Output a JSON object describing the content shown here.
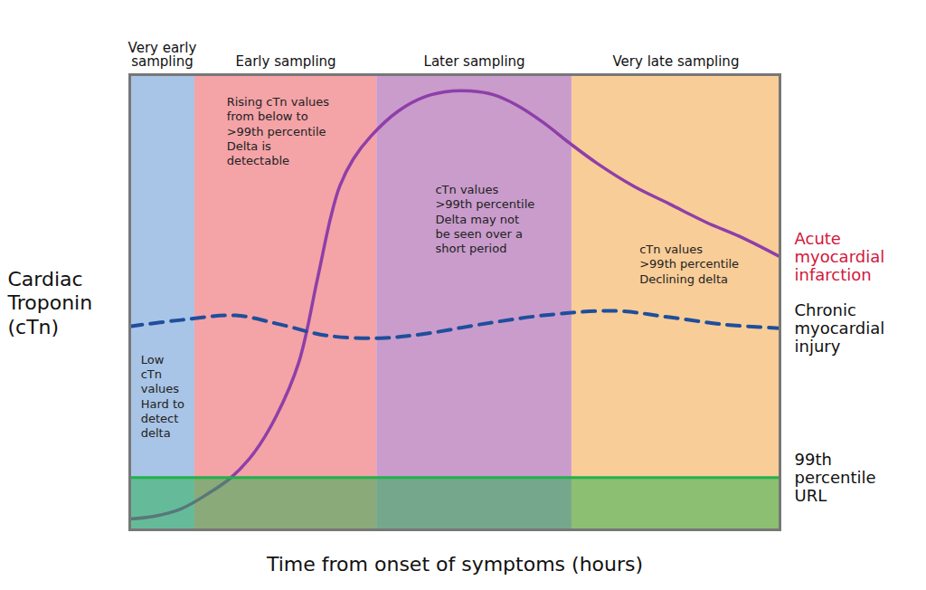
{
  "chart_data": {
    "type": "line",
    "x_label": "Time from onset of symptoms (hours)",
    "y_label": "Cardiac\nTroponin\n(cTn)",
    "xlim": [
      0,
      100
    ],
    "ylim": [
      0,
      100
    ],
    "xticks": [],
    "yticks": [],
    "tick_labels": false,
    "grid": false,
    "zones": [
      {
        "label": "Very early\nsampling",
        "x": [
          0,
          10
        ],
        "color": "#a8c4e6"
      },
      {
        "label": "Early sampling",
        "x": [
          10,
          38
        ],
        "color": "#f4a3a7"
      },
      {
        "label": "Later sampling",
        "x": [
          38,
          68
        ],
        "color": "#c99ccc"
      },
      {
        "label": "Very late sampling",
        "x": [
          68,
          100
        ],
        "color": "#f8cd98"
      }
    ],
    "threshold": {
      "name": "99th\npercentile\nURL",
      "value": 11.5,
      "color": "#22b14c"
    },
    "series": [
      {
        "name": "Acute\nmyocardial\ninfarction",
        "color": "#8e3fa8",
        "line_style": "solid",
        "x": [
          0,
          3.8,
          7.9,
          12.1,
          15.6,
          19.1,
          22.5,
          26.0,
          28.8,
          30.9,
          32.3,
          34.4,
          37.1,
          41.3,
          45.5,
          49.7,
          52.4,
          55.9,
          59.4,
          63.6,
          67.7,
          71.9,
          77.5,
          83.0,
          88.6,
          94.2,
          100
        ],
        "values": [
          2.4,
          3.0,
          4.6,
          8.0,
          11.5,
          16.9,
          24.9,
          36.8,
          54.7,
          68.6,
          75.5,
          81.5,
          86.5,
          92.0,
          95.2,
          96.4,
          96.4,
          95.6,
          93.4,
          89.5,
          84.9,
          80.5,
          75.5,
          71.6,
          67.6,
          64.2,
          60.0
        ]
      },
      {
        "name": "Chronic\nmyocardial\ninjury",
        "color": "#1f4e9c",
        "line_style": "dashed",
        "x": [
          0,
          7.9,
          16.3,
          23.2,
          30.2,
          38.5,
          45.5,
          53.8,
          63.6,
          74.7,
          83.0,
          91.5,
          100
        ],
        "values": [
          44.7,
          46.1,
          47.1,
          45.1,
          42.7,
          42.1,
          43.1,
          45.1,
          47.1,
          48.1,
          46.7,
          45.1,
          44.3
        ]
      }
    ],
    "annotations": [
      {
        "text": "Low\ncTn\nvalues\nHard to\ndetect\ndelta",
        "x": 1.7,
        "y": 38.8
      },
      {
        "text": "Rising cTn values\nfrom below to\n>99th percentile\nDelta is\ndetectable",
        "x": 14.9,
        "y": 95.4
      },
      {
        "text": "cTn values\n>99th percentile\nDelta may not\nbe seen over a\nshort period",
        "x": 47.0,
        "y": 76.1
      },
      {
        "text": "cTn values\n>99th percentile\nDeclining delta",
        "x": 78.4,
        "y": 63.0
      }
    ]
  }
}
